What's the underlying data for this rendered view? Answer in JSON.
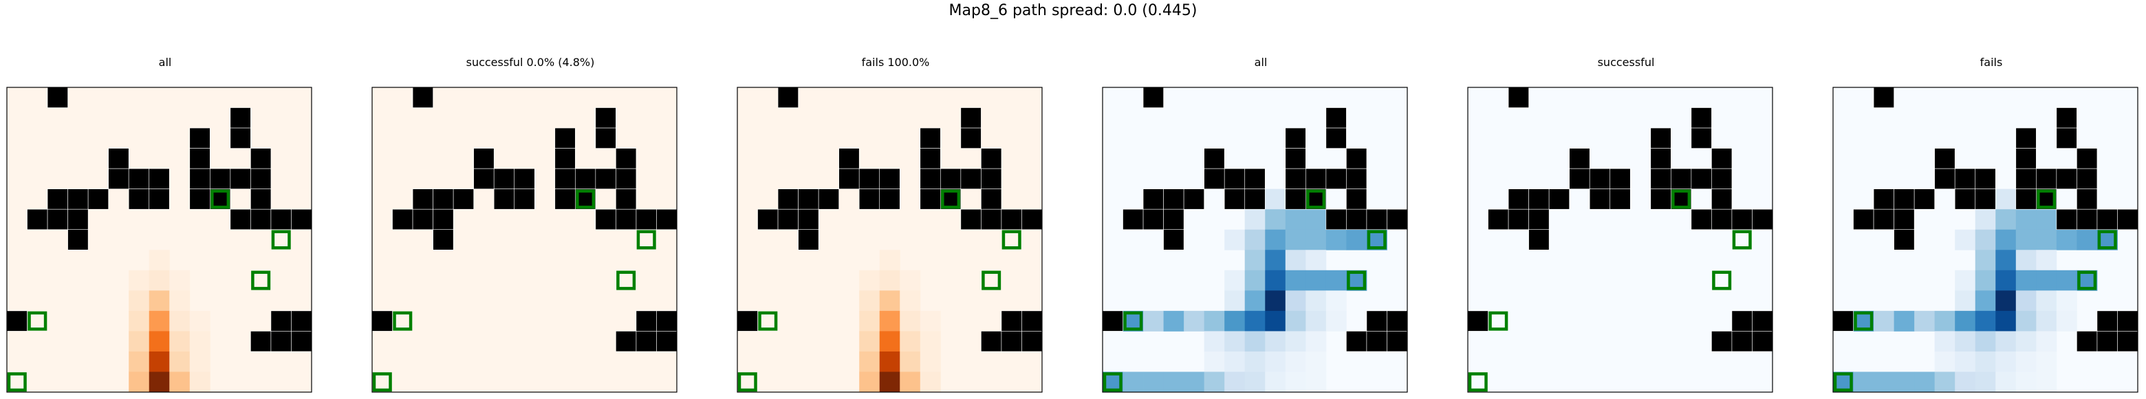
{
  "figure_title": "Map8_6 path spread: 0.0 (0.445)",
  "chart_data": {
    "type": "heatmap",
    "grid_size": [
      15,
      15
    ],
    "walls": [
      [
        2,
        0
      ],
      [
        11,
        1
      ],
      [
        9,
        2
      ],
      [
        11,
        2
      ],
      [
        5,
        3
      ],
      [
        9,
        3
      ],
      [
        12,
        3
      ],
      [
        5,
        4
      ],
      [
        6,
        4
      ],
      [
        7,
        4
      ],
      [
        9,
        4
      ],
      [
        10,
        4
      ],
      [
        11,
        4
      ],
      [
        12,
        4
      ],
      [
        2,
        5
      ],
      [
        3,
        5
      ],
      [
        4,
        5
      ],
      [
        6,
        5
      ],
      [
        7,
        5
      ],
      [
        9,
        5
      ],
      [
        10,
        5
      ],
      [
        12,
        5
      ],
      [
        1,
        6
      ],
      [
        2,
        6
      ],
      [
        3,
        6
      ],
      [
        11,
        6
      ],
      [
        12,
        6
      ],
      [
        13,
        6
      ],
      [
        14,
        6
      ],
      [
        3,
        7
      ],
      [
        0,
        11
      ],
      [
        13,
        11
      ],
      [
        14,
        11
      ],
      [
        12,
        12
      ],
      [
        13,
        12
      ],
      [
        14,
        12
      ]
    ],
    "goals": [
      [
        10,
        5
      ],
      [
        13,
        7
      ],
      [
        12,
        9
      ],
      [
        1,
        11
      ],
      [
        0,
        14
      ]
    ],
    "panels": [
      {
        "title": "all",
        "colormap": "Oranges",
        "heat": [
          [
            7,
            8,
            0.05
          ],
          [
            6,
            9,
            0.06
          ],
          [
            7,
            9,
            0.1
          ],
          [
            8,
            9,
            0.04
          ],
          [
            6,
            10,
            0.12
          ],
          [
            7,
            10,
            0.28
          ],
          [
            8,
            10,
            0.06
          ],
          [
            6,
            11,
            0.15
          ],
          [
            7,
            11,
            0.45
          ],
          [
            8,
            11,
            0.1
          ],
          [
            9,
            11,
            0.04
          ],
          [
            6,
            12,
            0.2
          ],
          [
            7,
            12,
            0.6
          ],
          [
            8,
            12,
            0.16
          ],
          [
            9,
            12,
            0.06
          ],
          [
            6,
            13,
            0.26
          ],
          [
            7,
            13,
            0.8
          ],
          [
            8,
            13,
            0.2
          ],
          [
            9,
            13,
            0.06
          ],
          [
            6,
            14,
            0.3
          ],
          [
            7,
            14,
            1.0
          ],
          [
            8,
            14,
            0.3
          ],
          [
            9,
            14,
            0.08
          ]
        ]
      },
      {
        "title": "successful 0.0% (4.8%)",
        "colormap": "Oranges",
        "heat": []
      },
      {
        "title": "fails 100.0%",
        "colormap": "Oranges",
        "heat": [
          [
            7,
            8,
            0.05
          ],
          [
            6,
            9,
            0.06
          ],
          [
            7,
            9,
            0.1
          ],
          [
            8,
            9,
            0.04
          ],
          [
            6,
            10,
            0.12
          ],
          [
            7,
            10,
            0.28
          ],
          [
            8,
            10,
            0.06
          ],
          [
            6,
            11,
            0.15
          ],
          [
            7,
            11,
            0.45
          ],
          [
            8,
            11,
            0.1
          ],
          [
            9,
            11,
            0.04
          ],
          [
            6,
            12,
            0.2
          ],
          [
            7,
            12,
            0.6
          ],
          [
            8,
            12,
            0.16
          ],
          [
            9,
            12,
            0.06
          ],
          [
            6,
            13,
            0.26
          ],
          [
            7,
            13,
            0.8
          ],
          [
            8,
            13,
            0.2
          ],
          [
            9,
            13,
            0.06
          ],
          [
            6,
            14,
            0.3
          ],
          [
            7,
            14,
            1.0
          ],
          [
            8,
            14,
            0.3
          ],
          [
            9,
            14,
            0.08
          ]
        ]
      },
      {
        "title": "all",
        "colormap": "Blues",
        "heat": [
          [
            8,
            5,
            0.15
          ],
          [
            9,
            5,
            0.3
          ],
          [
            10,
            5,
            0.5
          ],
          [
            7,
            6,
            0.15
          ],
          [
            8,
            6,
            0.4
          ],
          [
            9,
            6,
            0.45
          ],
          [
            10,
            6,
            0.45
          ],
          [
            12,
            6,
            0.5
          ],
          [
            6,
            7,
            0.1
          ],
          [
            7,
            7,
            0.3
          ],
          [
            8,
            7,
            0.55
          ],
          [
            9,
            7,
            0.45
          ],
          [
            10,
            7,
            0.45
          ],
          [
            11,
            7,
            0.5
          ],
          [
            12,
            7,
            0.55
          ],
          [
            13,
            7,
            0.6
          ],
          [
            7,
            8,
            0.35
          ],
          [
            8,
            8,
            0.7
          ],
          [
            9,
            8,
            0.18
          ],
          [
            10,
            8,
            0.1
          ],
          [
            6,
            9,
            0.08
          ],
          [
            7,
            9,
            0.4
          ],
          [
            8,
            9,
            0.8
          ],
          [
            9,
            9,
            0.55
          ],
          [
            10,
            9,
            0.55
          ],
          [
            11,
            9,
            0.55
          ],
          [
            12,
            9,
            0.6
          ],
          [
            6,
            10,
            0.12
          ],
          [
            7,
            10,
            0.5
          ],
          [
            8,
            10,
            1.0
          ],
          [
            9,
            10,
            0.25
          ],
          [
            10,
            10,
            0.12
          ],
          [
            11,
            10,
            0.05
          ],
          [
            1,
            11,
            0.6
          ],
          [
            2,
            11,
            0.3
          ],
          [
            3,
            11,
            0.5
          ],
          [
            4,
            11,
            0.3
          ],
          [
            5,
            11,
            0.4
          ],
          [
            6,
            11,
            0.6
          ],
          [
            7,
            11,
            0.75
          ],
          [
            8,
            11,
            0.9
          ],
          [
            9,
            11,
            0.3
          ],
          [
            10,
            11,
            0.15
          ],
          [
            11,
            11,
            0.06
          ],
          [
            5,
            12,
            0.1
          ],
          [
            6,
            12,
            0.18
          ],
          [
            7,
            12,
            0.28
          ],
          [
            8,
            12,
            0.18
          ],
          [
            9,
            12,
            0.12
          ],
          [
            10,
            12,
            0.06
          ],
          [
            5,
            13,
            0.06
          ],
          [
            6,
            13,
            0.1
          ],
          [
            7,
            13,
            0.15
          ],
          [
            8,
            13,
            0.1
          ],
          [
            9,
            13,
            0.06
          ],
          [
            10,
            13,
            0.04
          ],
          [
            0,
            14,
            0.6
          ],
          [
            1,
            14,
            0.45
          ],
          [
            2,
            14,
            0.45
          ],
          [
            3,
            14,
            0.45
          ],
          [
            4,
            14,
            0.45
          ],
          [
            5,
            14,
            0.35
          ],
          [
            6,
            14,
            0.2
          ],
          [
            7,
            14,
            0.18
          ],
          [
            8,
            14,
            0.08
          ],
          [
            9,
            14,
            0.05
          ],
          [
            10,
            14,
            0.04
          ]
        ]
      },
      {
        "title": "successful",
        "colormap": "Blues",
        "heat": []
      },
      {
        "title": "fails",
        "colormap": "Blues",
        "heat": [
          [
            8,
            5,
            0.15
          ],
          [
            9,
            5,
            0.3
          ],
          [
            10,
            5,
            0.5
          ],
          [
            7,
            6,
            0.15
          ],
          [
            8,
            6,
            0.4
          ],
          [
            9,
            6,
            0.45
          ],
          [
            10,
            6,
            0.45
          ],
          [
            12,
            6,
            0.5
          ],
          [
            6,
            7,
            0.1
          ],
          [
            7,
            7,
            0.3
          ],
          [
            8,
            7,
            0.55
          ],
          [
            9,
            7,
            0.45
          ],
          [
            10,
            7,
            0.45
          ],
          [
            11,
            7,
            0.5
          ],
          [
            12,
            7,
            0.55
          ],
          [
            13,
            7,
            0.6
          ],
          [
            7,
            8,
            0.35
          ],
          [
            8,
            8,
            0.7
          ],
          [
            9,
            8,
            0.18
          ],
          [
            10,
            8,
            0.1
          ],
          [
            6,
            9,
            0.08
          ],
          [
            7,
            9,
            0.4
          ],
          [
            8,
            9,
            0.8
          ],
          [
            9,
            9,
            0.55
          ],
          [
            10,
            9,
            0.55
          ],
          [
            11,
            9,
            0.55
          ],
          [
            12,
            9,
            0.6
          ],
          [
            6,
            10,
            0.12
          ],
          [
            7,
            10,
            0.5
          ],
          [
            8,
            10,
            1.0
          ],
          [
            9,
            10,
            0.25
          ],
          [
            10,
            10,
            0.12
          ],
          [
            11,
            10,
            0.05
          ],
          [
            1,
            11,
            0.6
          ],
          [
            2,
            11,
            0.3
          ],
          [
            3,
            11,
            0.5
          ],
          [
            4,
            11,
            0.3
          ],
          [
            5,
            11,
            0.4
          ],
          [
            6,
            11,
            0.6
          ],
          [
            7,
            11,
            0.75
          ],
          [
            8,
            11,
            0.9
          ],
          [
            9,
            11,
            0.3
          ],
          [
            10,
            11,
            0.15
          ],
          [
            11,
            11,
            0.06
          ],
          [
            5,
            12,
            0.1
          ],
          [
            6,
            12,
            0.18
          ],
          [
            7,
            12,
            0.28
          ],
          [
            8,
            12,
            0.18
          ],
          [
            9,
            12,
            0.12
          ],
          [
            10,
            12,
            0.06
          ],
          [
            5,
            13,
            0.06
          ],
          [
            6,
            13,
            0.1
          ],
          [
            7,
            13,
            0.15
          ],
          [
            8,
            13,
            0.1
          ],
          [
            9,
            13,
            0.06
          ],
          [
            10,
            13,
            0.04
          ],
          [
            0,
            14,
            0.6
          ],
          [
            1,
            14,
            0.45
          ],
          [
            2,
            14,
            0.45
          ],
          [
            3,
            14,
            0.45
          ],
          [
            4,
            14,
            0.45
          ],
          [
            5,
            14,
            0.35
          ],
          [
            6,
            14,
            0.2
          ],
          [
            7,
            14,
            0.18
          ],
          [
            8,
            14,
            0.08
          ],
          [
            9,
            14,
            0.05
          ],
          [
            10,
            14,
            0.04
          ]
        ]
      }
    ],
    "colors": {
      "wall": "#000000",
      "goal": "#008000",
      "frame": "#000000"
    }
  }
}
